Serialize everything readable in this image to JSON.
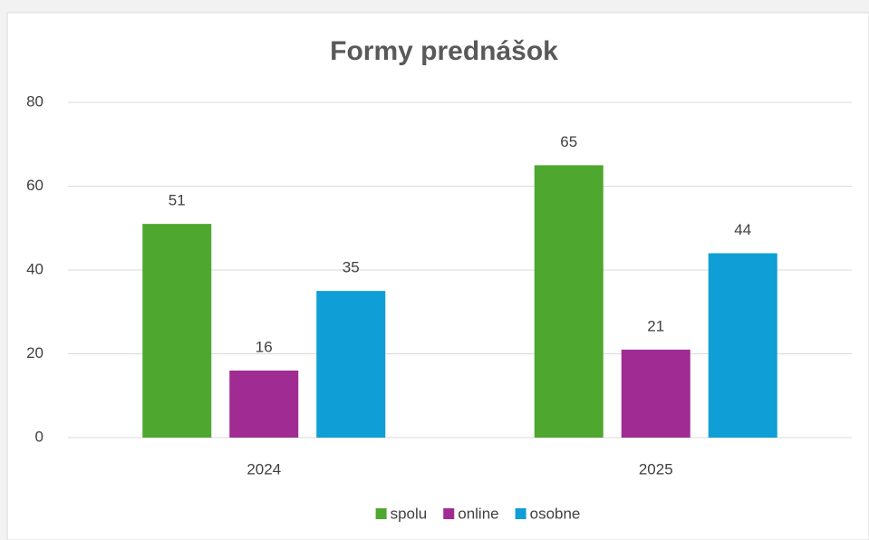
{
  "chart_data": {
    "type": "bar",
    "title": "Formy prednášok",
    "categories": [
      "2024",
      "2025"
    ],
    "series": [
      {
        "name": "spolu",
        "color": "#4ea72e",
        "values": [
          51,
          65
        ]
      },
      {
        "name": "online",
        "color": "#a02b93",
        "values": [
          16,
          21
        ]
      },
      {
        "name": "osobne",
        "color": "#0f9ed5",
        "values": [
          35,
          44
        ]
      }
    ],
    "ylim": [
      0,
      80
    ],
    "yticks": [
      0,
      20,
      40,
      60,
      80
    ],
    "grid": true,
    "legend": "bottom"
  }
}
